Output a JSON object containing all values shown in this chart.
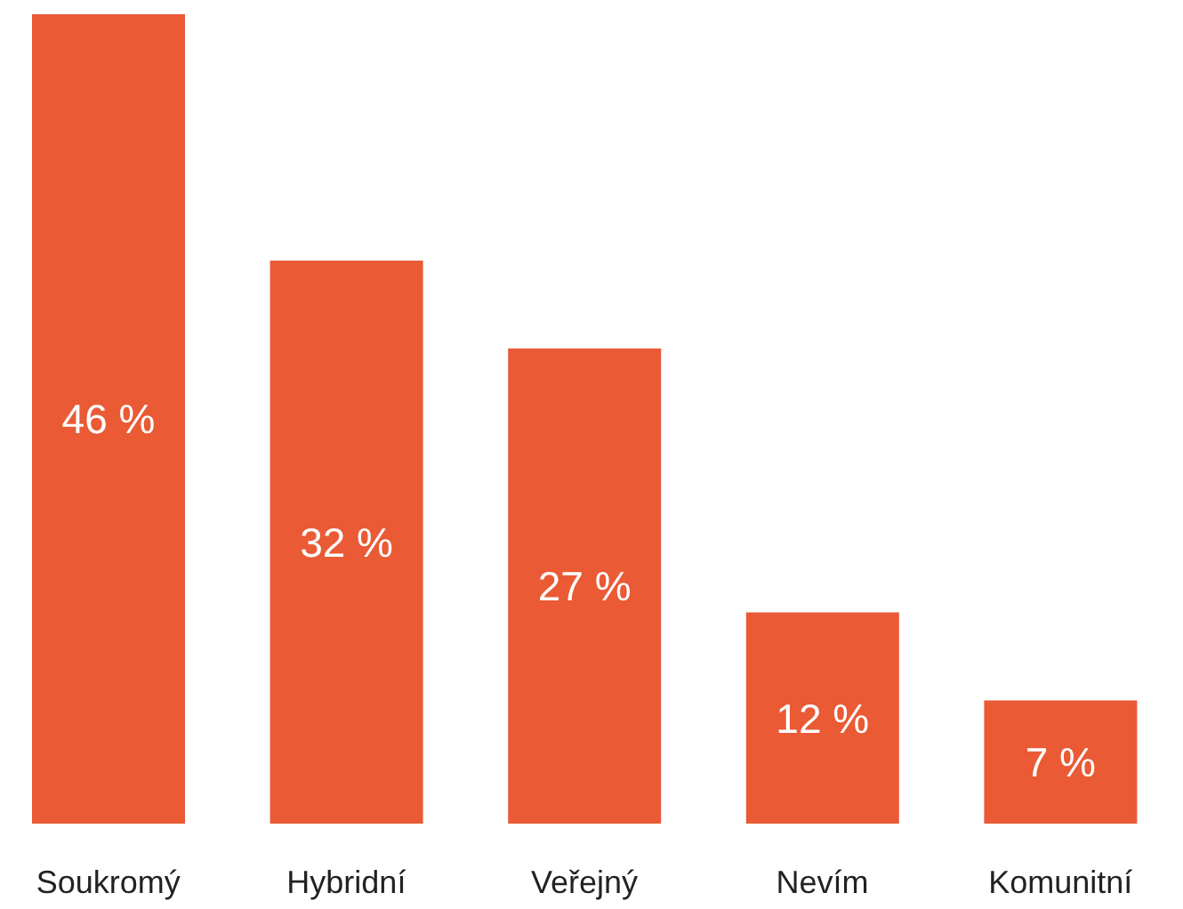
{
  "chart_data": {
    "type": "bar",
    "categories": [
      "Soukromý",
      "Hybridní",
      "Veřejný",
      "Nevím",
      "Komunitní"
    ],
    "values": [
      46,
      32,
      27,
      12,
      7
    ],
    "value_labels": [
      "46 %",
      "32 %",
      "27 %",
      "12 %",
      "7 %"
    ],
    "color": "#e95a35",
    "grid": false,
    "legend": false
  }
}
